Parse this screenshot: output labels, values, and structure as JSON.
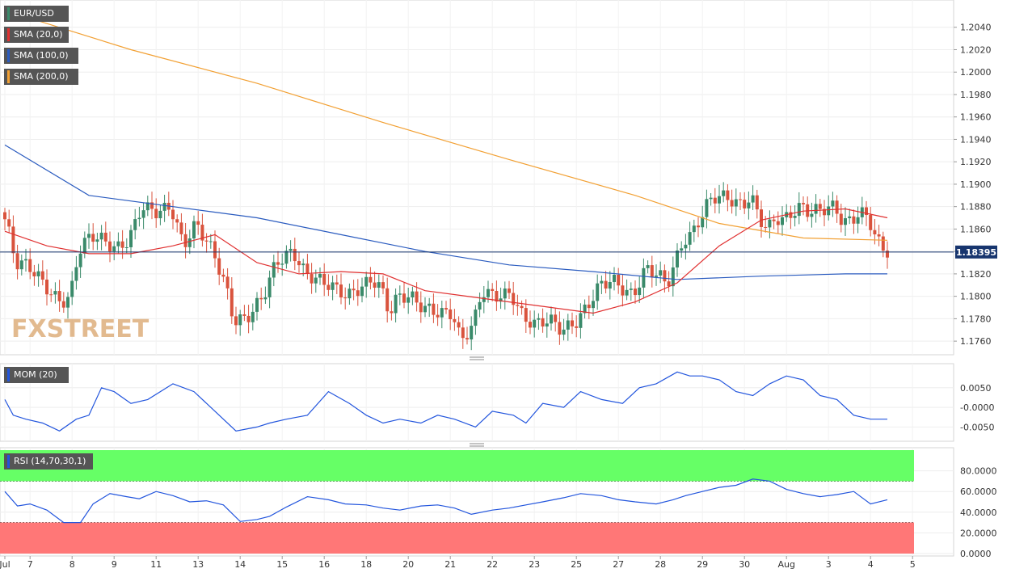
{
  "instrument": "EUR/USD",
  "watermark": "FXSTREET",
  "colors": {
    "bull": "#3a8a6a",
    "bear": "#d9533d",
    "sma20": "#e03030",
    "sma100": "#2a5bbf",
    "sma200": "#f2a033",
    "mom": "#2255dd",
    "rsi": "#2255dd",
    "rsi_overbought": "#66ff66",
    "rsi_oversold": "#ff7777",
    "current_price_tag": "#17356e"
  },
  "legends": {
    "price": [
      {
        "label": "EUR/USD",
        "color": "#3a8a6a"
      },
      {
        "label": "SMA (20,0)",
        "color": "#e03030"
      },
      {
        "label": "SMA (100,0)",
        "color": "#2a5bbf"
      },
      {
        "label": "SMA (200,0)",
        "color": "#f2a033"
      }
    ],
    "mom": {
      "label": "MOM (20)",
      "color": "#2255dd"
    },
    "rsi": {
      "label": "RSI (14,70,30,1)",
      "color": "#2255dd"
    }
  },
  "current_price": "1.18395",
  "x_axis": {
    "labels": [
      "Jul",
      "7",
      "8",
      "9",
      "11",
      "13",
      "14",
      "15",
      "16",
      "18",
      "20",
      "21",
      "22",
      "23",
      "25",
      "27",
      "28",
      "29",
      "30",
      "Aug",
      "3",
      "4",
      "5"
    ],
    "label_slots": [
      0,
      6,
      16,
      26,
      36,
      46,
      56,
      66,
      76,
      86,
      96,
      106,
      116,
      126,
      136,
      146,
      156,
      166,
      176,
      186,
      196,
      206,
      216
    ]
  },
  "chart_data": [
    {
      "type": "candlestick",
      "title": "EUR/USD",
      "ylim": [
        1.175,
        1.206
      ],
      "yticks": [
        "1.1760",
        "1.1780",
        "1.1800",
        "1.1820",
        "1.1840",
        "1.1860",
        "1.1880",
        "1.1900",
        "1.1920",
        "1.1940",
        "1.1960",
        "1.1980",
        "1.2000",
        "1.2020",
        "1.2040"
      ],
      "anchors": [
        [
          0,
          1.1875
        ],
        [
          2,
          1.185
        ],
        [
          3,
          1.183
        ],
        [
          6,
          1.1828
        ],
        [
          9,
          1.1815
        ],
        [
          12,
          1.18
        ],
        [
          14,
          1.1795
        ],
        [
          16,
          1.1798
        ],
        [
          18,
          1.184
        ],
        [
          21,
          1.1855
        ],
        [
          24,
          1.185
        ],
        [
          27,
          1.1842
        ],
        [
          30,
          1.185
        ],
        [
          33,
          1.188
        ],
        [
          37,
          1.1875
        ],
        [
          40,
          1.188
        ],
        [
          43,
          1.1845
        ],
        [
          46,
          1.1865
        ],
        [
          50,
          1.184
        ],
        [
          53,
          1.181
        ],
        [
          55,
          1.1778
        ],
        [
          58,
          1.178
        ],
        [
          62,
          1.18
        ],
        [
          65,
          1.183
        ],
        [
          69,
          1.184
        ],
        [
          72,
          1.182
        ],
        [
          75,
          1.1815
        ],
        [
          78,
          1.181
        ],
        [
          82,
          1.18
        ],
        [
          86,
          1.181
        ],
        [
          88,
          1.1815
        ],
        [
          90,
          1.1808
        ],
        [
          92,
          1.1785
        ],
        [
          94,
          1.18
        ],
        [
          97,
          1.18
        ],
        [
          100,
          1.179
        ],
        [
          104,
          1.1785
        ],
        [
          107,
          1.1785
        ],
        [
          109,
          1.176
        ],
        [
          112,
          1.1775
        ],
        [
          114,
          1.1805
        ],
        [
          117,
          1.18
        ],
        [
          121,
          1.1802
        ],
        [
          124,
          1.178
        ],
        [
          127,
          1.1775
        ],
        [
          130,
          1.178
        ],
        [
          133,
          1.177
        ],
        [
          136,
          1.1775
        ],
        [
          139,
          1.179
        ],
        [
          142,
          1.181
        ],
        [
          145,
          1.1815
        ],
        [
          147,
          1.1808
        ],
        [
          150,
          1.18
        ],
        [
          153,
          1.1825
        ],
        [
          156,
          1.182
        ],
        [
          158,
          1.181
        ],
        [
          160,
          1.183
        ],
        [
          162,
          1.185
        ],
        [
          164,
          1.1855
        ],
        [
          166,
          1.187
        ],
        [
          168,
          1.1885
        ],
        [
          170,
          1.189
        ],
        [
          172,
          1.1888
        ],
        [
          174,
          1.1885
        ],
        [
          176,
          1.188
        ],
        [
          178,
          1.189
        ],
        [
          180,
          1.187
        ],
        [
          182,
          1.186
        ],
        [
          184,
          1.187
        ],
        [
          186,
          1.1868
        ],
        [
          188,
          1.1875
        ],
        [
          190,
          1.188
        ],
        [
          192,
          1.1875
        ],
        [
          195,
          1.1878
        ],
        [
          198,
          1.188
        ],
        [
          200,
          1.1865
        ],
        [
          202,
          1.1868
        ],
        [
          204,
          1.1875
        ],
        [
          206,
          1.187
        ],
        [
          208,
          1.185
        ],
        [
          210,
          1.184
        ]
      ],
      "sma20": [
        [
          0,
          1.1858
        ],
        [
          10,
          1.1845
        ],
        [
          20,
          1.1838
        ],
        [
          30,
          1.1838
        ],
        [
          40,
          1.1845
        ],
        [
          50,
          1.1855
        ],
        [
          60,
          1.183
        ],
        [
          70,
          1.182
        ],
        [
          80,
          1.1822
        ],
        [
          90,
          1.182
        ],
        [
          100,
          1.1805
        ],
        [
          110,
          1.18
        ],
        [
          120,
          1.1795
        ],
        [
          130,
          1.179
        ],
        [
          140,
          1.1785
        ],
        [
          150,
          1.1795
        ],
        [
          160,
          1.1812
        ],
        [
          170,
          1.1845
        ],
        [
          180,
          1.1868
        ],
        [
          190,
          1.1876
        ],
        [
          200,
          1.1878
        ],
        [
          210,
          1.187
        ]
      ],
      "sma100": [
        [
          0,
          1.1935
        ],
        [
          20,
          1.189
        ],
        [
          40,
          1.188
        ],
        [
          60,
          1.187
        ],
        [
          80,
          1.1855
        ],
        [
          100,
          1.184
        ],
        [
          120,
          1.1828
        ],
        [
          140,
          1.1822
        ],
        [
          160,
          1.1815
        ],
        [
          180,
          1.1818
        ],
        [
          200,
          1.182
        ],
        [
          210,
          1.182
        ]
      ],
      "sma200": [
        [
          0,
          1.2055
        ],
        [
          30,
          1.202
        ],
        [
          60,
          1.199
        ],
        [
          90,
          1.1955
        ],
        [
          120,
          1.1922
        ],
        [
          150,
          1.189
        ],
        [
          170,
          1.1865
        ],
        [
          190,
          1.1852
        ],
        [
          210,
          1.185
        ]
      ]
    },
    {
      "type": "line",
      "title": "MOM (20)",
      "ylim": [
        -0.008,
        0.0105
      ],
      "yticks": [
        "0.0050",
        "-0.0000",
        "-0.0050"
      ],
      "x": [
        0,
        2,
        5,
        9,
        13,
        17,
        20,
        23,
        26,
        30,
        34,
        40,
        45,
        50,
        55,
        60,
        63,
        67,
        72,
        77,
        82,
        86,
        90,
        94,
        99,
        103,
        107,
        112,
        116,
        121,
        124,
        128,
        133,
        137,
        142,
        147,
        151,
        155,
        160,
        163,
        166,
        170,
        174,
        178,
        182,
        186,
        190,
        194,
        198,
        202,
        206,
        210
      ],
      "values": [
        0.002,
        -0.002,
        -0.003,
        -0.004,
        -0.006,
        -0.003,
        -0.002,
        0.005,
        0.004,
        0.001,
        0.002,
        0.006,
        0.004,
        -0.001,
        -0.006,
        -0.005,
        -0.004,
        -0.003,
        -0.002,
        0.004,
        0.001,
        -0.002,
        -0.004,
        -0.003,
        -0.004,
        -0.002,
        -0.003,
        -0.005,
        -0.001,
        -0.002,
        -0.004,
        0.001,
        0.0,
        0.004,
        0.002,
        0.001,
        0.005,
        0.006,
        0.009,
        0.008,
        0.008,
        0.007,
        0.004,
        0.003,
        0.006,
        0.008,
        0.007,
        0.003,
        0.002,
        -0.002,
        -0.003,
        -0.003
      ]
    },
    {
      "type": "line",
      "title": "RSI (14,70,30,1)",
      "ylim": [
        0,
        100
      ],
      "yticks": [
        "80.0000",
        "60.0000",
        "40.0000",
        "20.0000",
        "0.0000"
      ],
      "overbought": 70,
      "oversold": 30,
      "x": [
        0,
        3,
        6,
        10,
        14,
        18,
        21,
        25,
        29,
        32,
        36,
        40,
        44,
        48,
        52,
        56,
        60,
        63,
        67,
        72,
        77,
        81,
        86,
        90,
        94,
        99,
        103,
        107,
        111,
        116,
        120,
        124,
        128,
        133,
        137,
        142,
        146,
        150,
        155,
        159,
        162,
        166,
        170,
        174,
        178,
        182,
        186,
        190,
        194,
        198,
        202,
        206,
        210
      ],
      "values": [
        60,
        46,
        48,
        42,
        30,
        30,
        48,
        58,
        55,
        53,
        60,
        56,
        50,
        51,
        47,
        31,
        33,
        36,
        45,
        55,
        52,
        48,
        47,
        44,
        42,
        46,
        47,
        44,
        38,
        42,
        44,
        47,
        50,
        54,
        58,
        56,
        52,
        50,
        48,
        52,
        56,
        60,
        64,
        66,
        72,
        70,
        62,
        58,
        55,
        57,
        60,
        48,
        52
      ]
    }
  ]
}
